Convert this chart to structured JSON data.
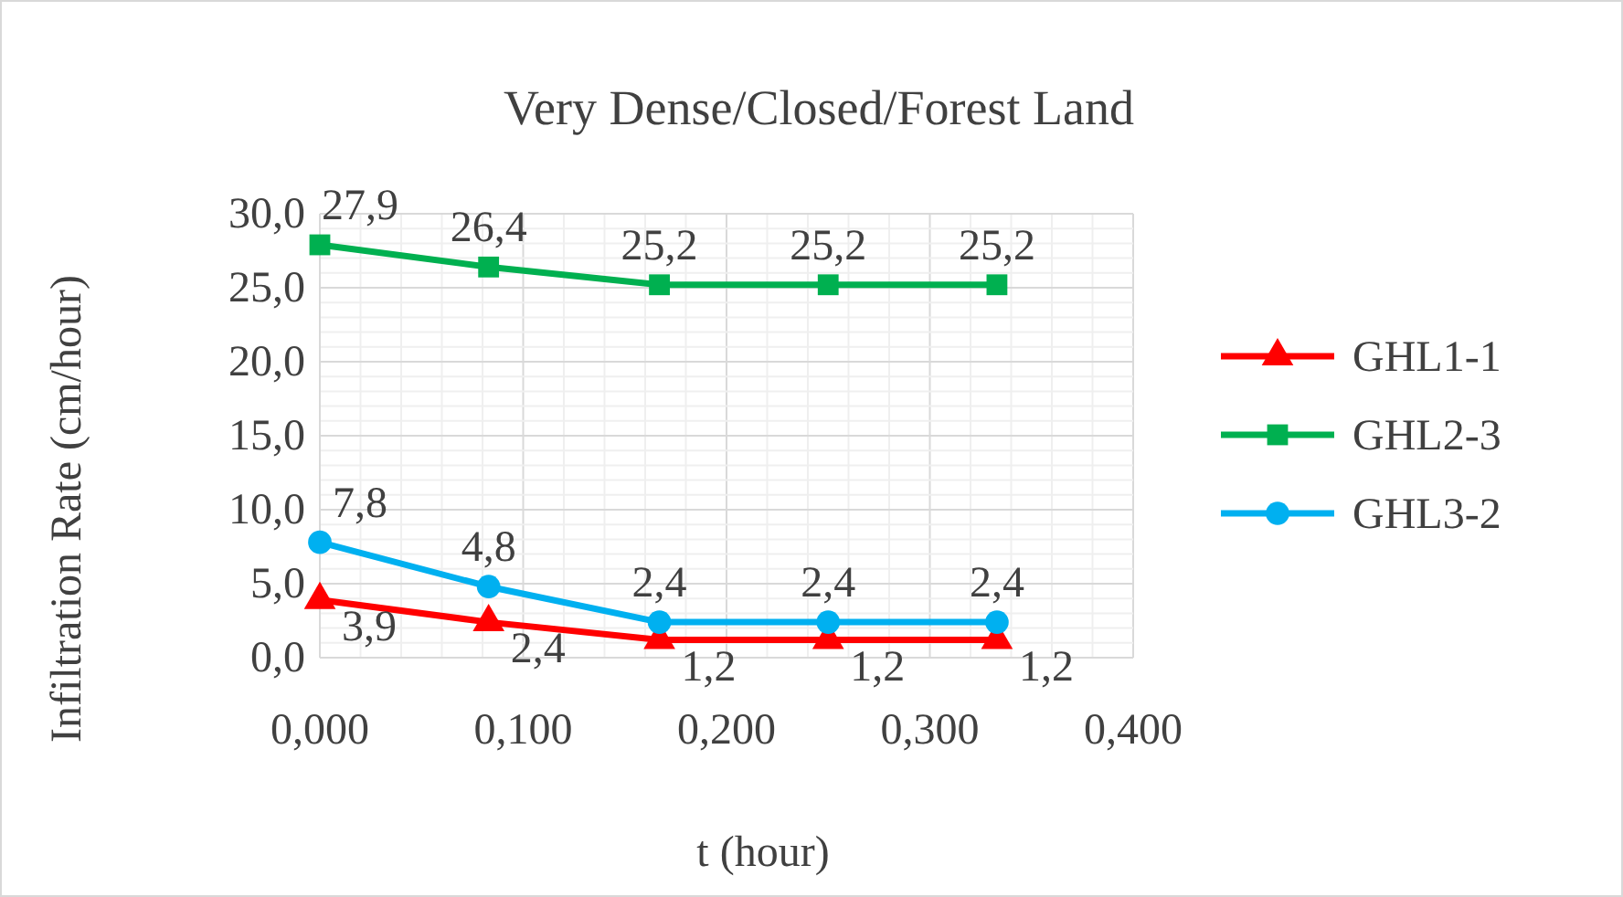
{
  "chart_data": {
    "type": "line",
    "title": "Very Dense/Closed/Forest Land",
    "xlabel": "t (hour)",
    "ylabel": "Infiltration Rate  (cm/hour)",
    "x": [
      0,
      0.083,
      0.167,
      0.25,
      0.333
    ],
    "series": [
      {
        "name": "GHL1-1",
        "color": "#ff0000",
        "marker": "triangle",
        "values": [
          3.9,
          2.4,
          1.2,
          1.2,
          1.2
        ],
        "value_labels": [
          "3,9",
          "2,4",
          "1,2",
          "1,2",
          "1,2"
        ]
      },
      {
        "name": "GHL2-3",
        "color": "#00b050",
        "marker": "square",
        "values": [
          27.9,
          26.4,
          25.2,
          25.2,
          25.2
        ],
        "value_labels": [
          "27,9",
          "26,4",
          "25,2",
          "25,2",
          "25,2"
        ]
      },
      {
        "name": "GHL3-2",
        "color": "#00b0f0",
        "marker": "circle",
        "values": [
          7.8,
          4.8,
          2.4,
          2.4,
          2.4
        ],
        "value_labels": [
          "7,8",
          "4,8",
          "2,4",
          "2,4",
          "2,4"
        ]
      }
    ],
    "xlim": [
      0,
      0.4
    ],
    "xticks": [
      {
        "value": 0,
        "label": "0,000"
      },
      {
        "value": 0.1,
        "label": "0,100"
      },
      {
        "value": 0.2,
        "label": "0,200"
      },
      {
        "value": 0.3,
        "label": "0,300"
      },
      {
        "value": 0.4,
        "label": "0,400"
      }
    ],
    "ylim": [
      0,
      30
    ],
    "yticks": [
      {
        "value": 0,
        "label": "0,0"
      },
      {
        "value": 5,
        "label": "5,0"
      },
      {
        "value": 10,
        "label": "10,0"
      },
      {
        "value": 15,
        "label": "15,0"
      },
      {
        "value": 20,
        "label": "20,0"
      },
      {
        "value": 25,
        "label": "25,0"
      },
      {
        "value": 30,
        "label": "30,0"
      }
    ],
    "grid": true,
    "legend": "right",
    "line_style": "solid"
  }
}
